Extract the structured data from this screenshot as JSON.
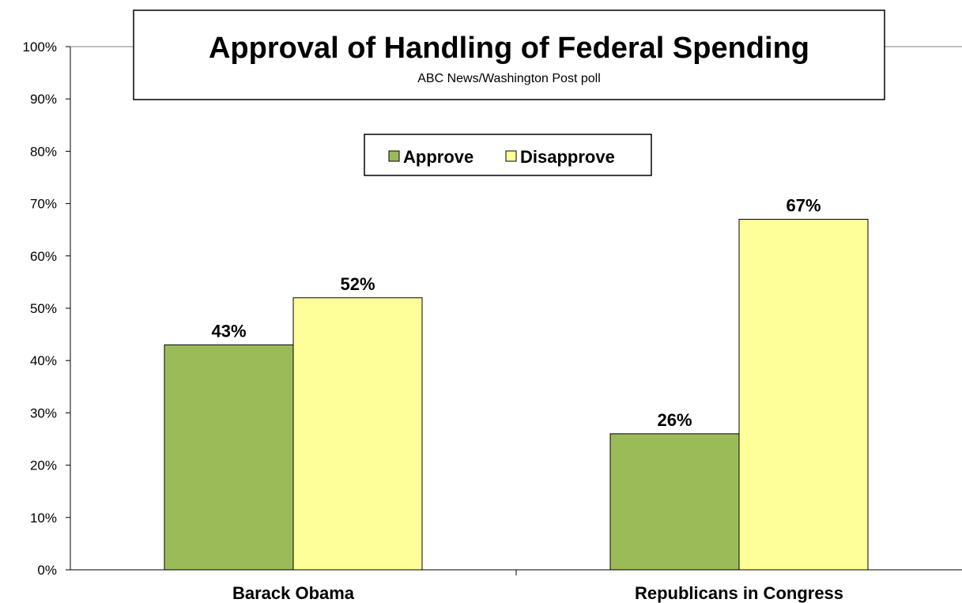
{
  "chart_data": {
    "type": "bar",
    "title": "Approval of Handling of Federal Spending",
    "subtitle": "ABC News/Washington Post poll",
    "categories": [
      "Barack Obama",
      "Republicans in Congress"
    ],
    "series": [
      {
        "name": "Approve",
        "values": [
          43,
          26
        ],
        "labels": [
          "43%",
          "26%"
        ],
        "color": "#9bbb59"
      },
      {
        "name": "Disapprove",
        "values": [
          52,
          67
        ],
        "labels": [
          "52%",
          "67%"
        ],
        "color": "#ffff99"
      }
    ],
    "ylim": [
      0,
      100
    ],
    "yticks": [
      "0%",
      "10%",
      "20%",
      "30%",
      "40%",
      "50%",
      "60%",
      "70%",
      "80%",
      "90%",
      "100%"
    ],
    "xlabel": "",
    "ylabel": "",
    "grid": false,
    "legend_position": "top-center"
  }
}
